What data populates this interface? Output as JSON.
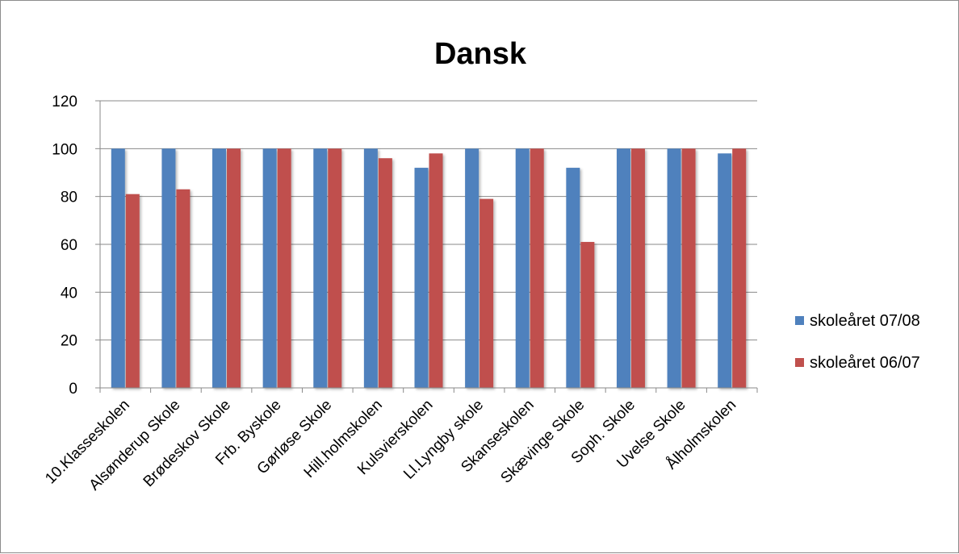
{
  "chart_data": {
    "type": "bar",
    "title": "Dansk",
    "xlabel": "",
    "ylabel": "",
    "ylim": [
      0,
      120
    ],
    "yticks": [
      0,
      20,
      40,
      60,
      80,
      100,
      120
    ],
    "grid": true,
    "legend_position": "right",
    "categories": [
      "10.Klasseskolen",
      "Alsønderup Skole",
      "Brødeskov Skole",
      "Frb. Byskole",
      "Gørløse Skole",
      "Hill.holmskolen",
      "Kulsvierskolen",
      "Ll.Lyngby skole",
      "Skanseskolen",
      "Skævinge Skole",
      "Soph. Skole",
      "Uvelse Skole",
      "Ålholmskolen"
    ],
    "series": [
      {
        "name": "skoleåret 07/08",
        "color": "#4f81bd",
        "values": [
          100,
          100,
          100,
          100,
          100,
          100,
          92,
          100,
          100,
          92,
          100,
          100,
          98
        ]
      },
      {
        "name": "skoleåret 06/07",
        "color": "#c0504d",
        "values": [
          81,
          83,
          100,
          100,
          100,
          96,
          98,
          79,
          100,
          61,
          100,
          100,
          100
        ]
      }
    ]
  }
}
